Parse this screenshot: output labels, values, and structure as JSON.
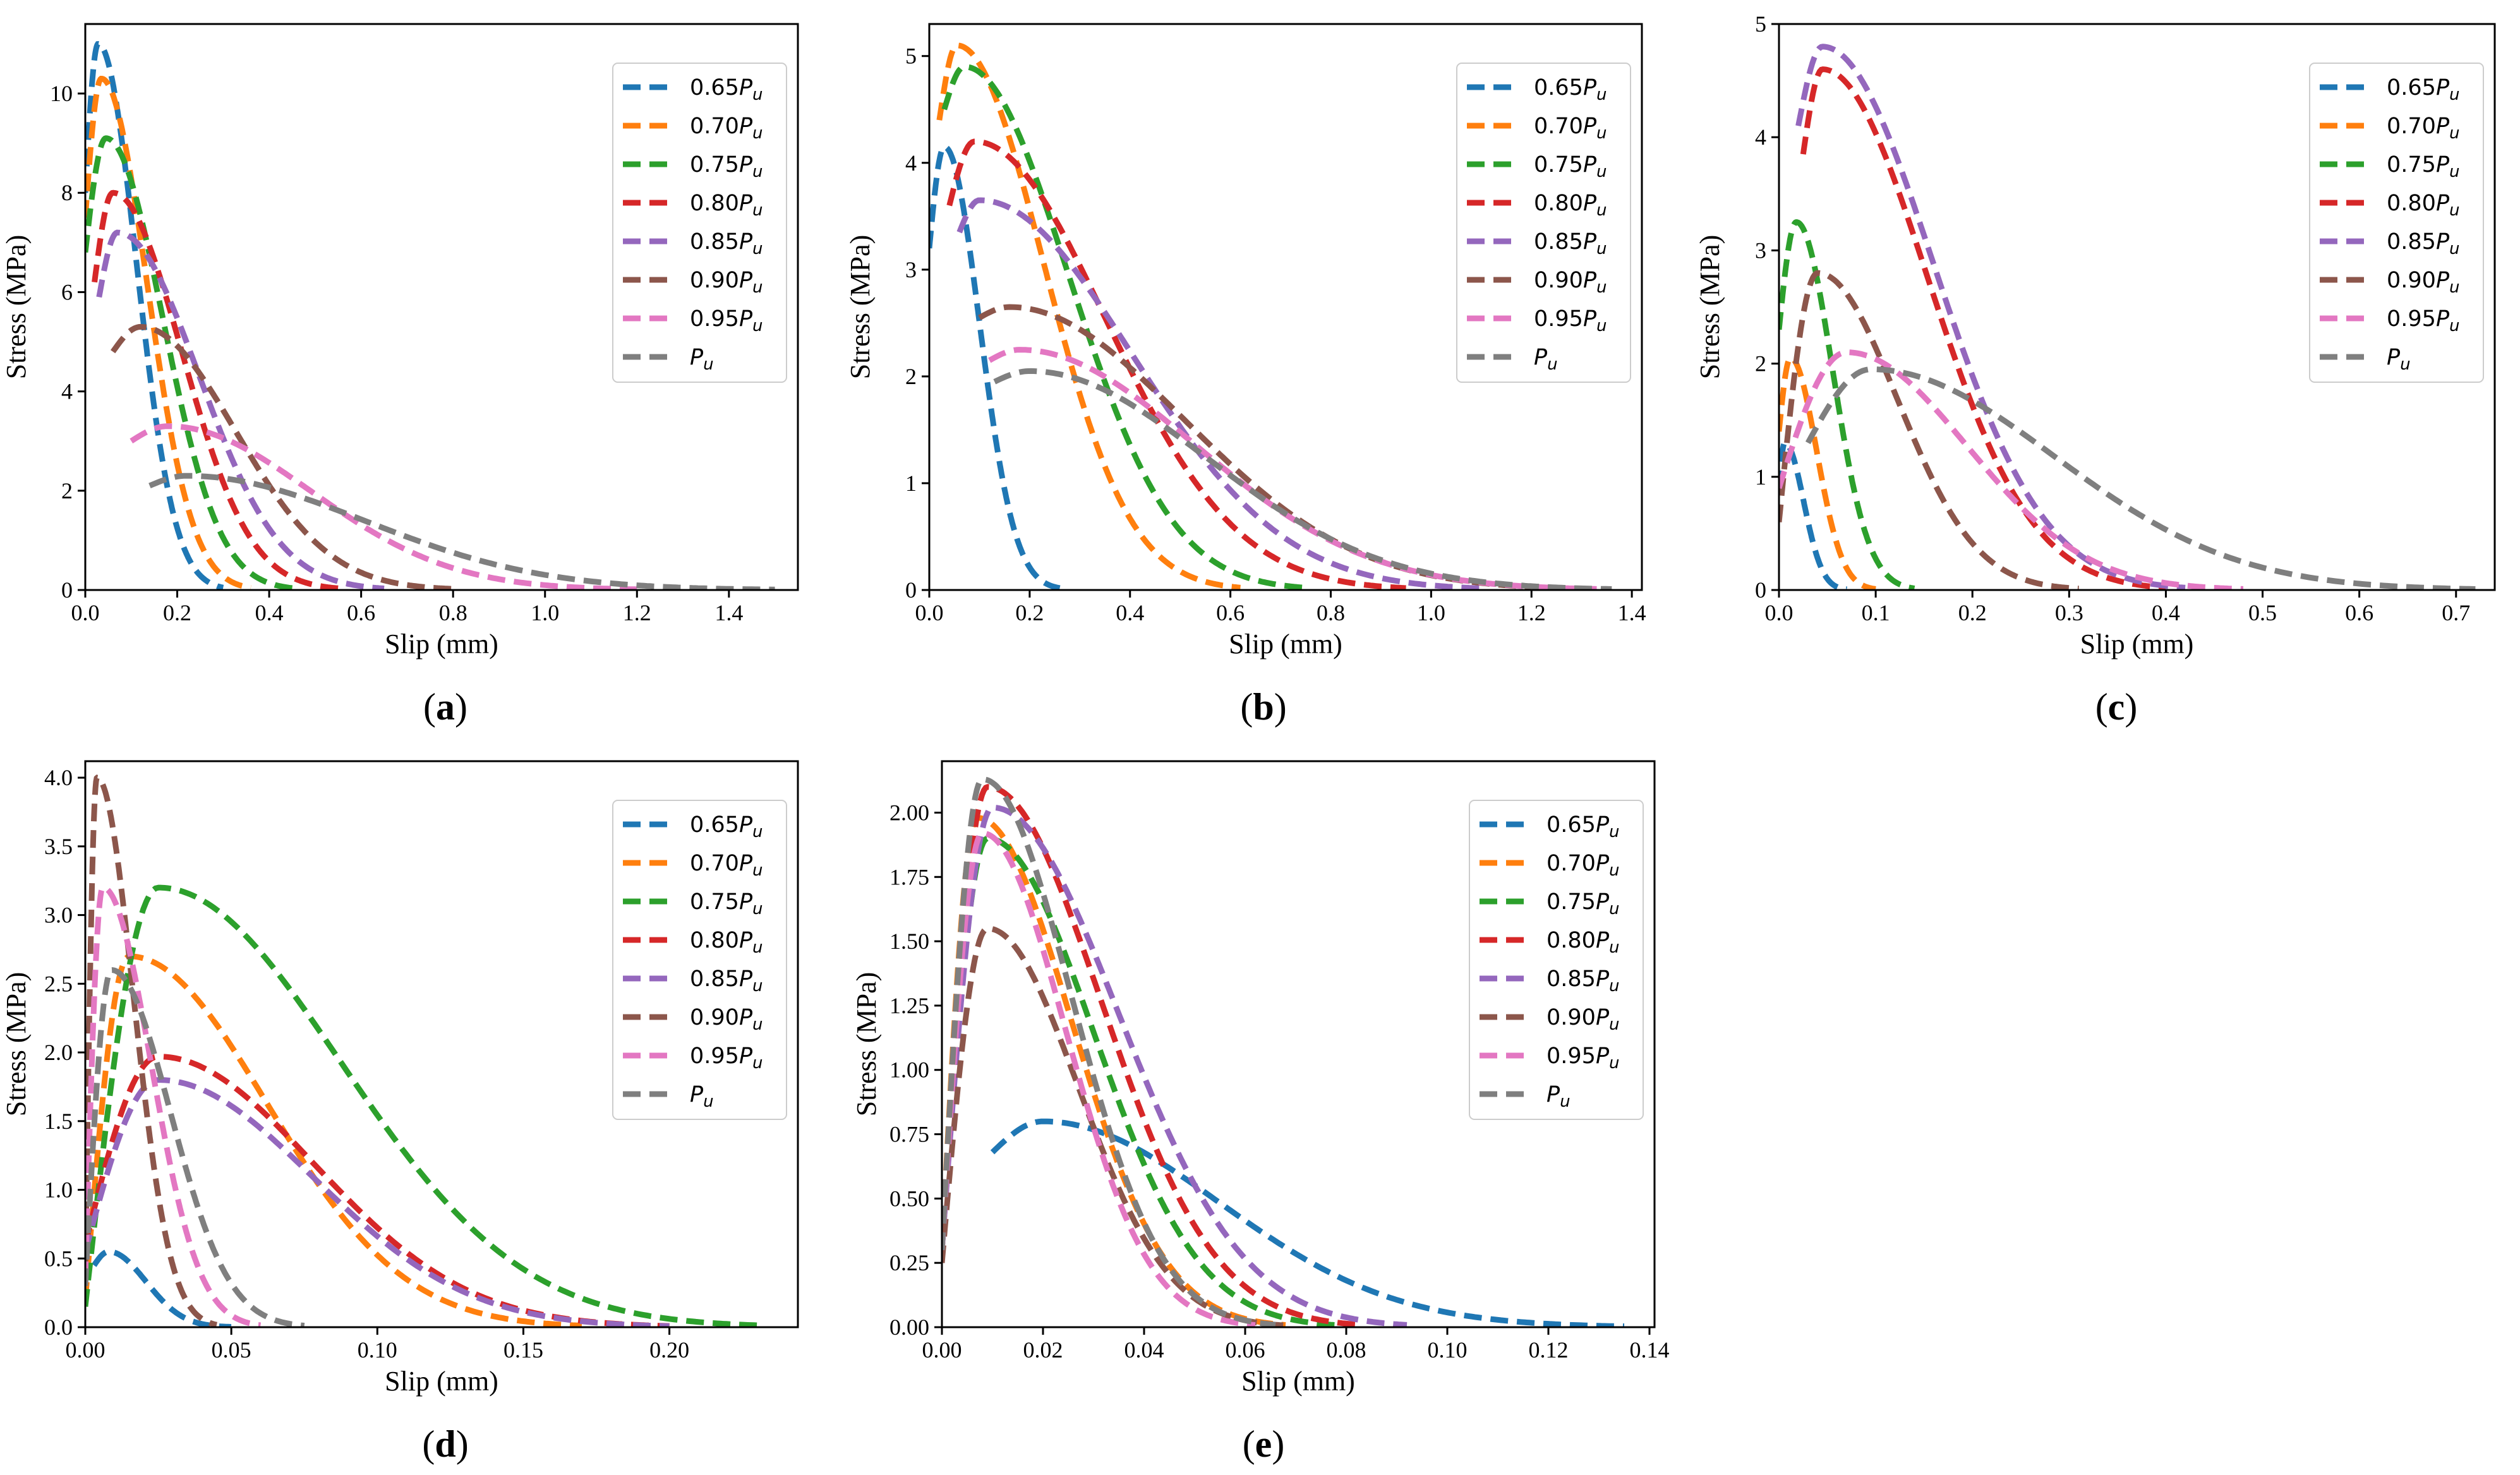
{
  "colors": {
    "0.65Pu": "#1f77b4",
    "0.70Pu": "#ff7f0e",
    "0.75Pu": "#2ca02c",
    "0.80Pu": "#d62728",
    "0.85Pu": "#9467bd",
    "0.90Pu": "#8c564b",
    "0.95Pu": "#e377c2",
    "Pu": "#7f7f7f"
  },
  "legend_entries": [
    {
      "coef": "0.65",
      "sub": "u"
    },
    {
      "coef": "0.70",
      "sub": "u"
    },
    {
      "coef": "0.75",
      "sub": "u"
    },
    {
      "coef": "0.80",
      "sub": "u"
    },
    {
      "coef": "0.85",
      "sub": "u"
    },
    {
      "coef": "0.90",
      "sub": "u"
    },
    {
      "coef": "0.95",
      "sub": "u"
    },
    {
      "coef": "",
      "sub": "u"
    }
  ],
  "legend_symbol": "P",
  "chart_data": [
    {
      "panel": "a",
      "type": "line",
      "label": "(a)",
      "xlabel": "Slip (mm)",
      "ylabel": "Stress (MPa)",
      "xlim": [
        0,
        1.55
      ],
      "ylim": [
        0,
        11.4
      ],
      "xticks": [
        0.0,
        0.2,
        0.4,
        0.6,
        0.8,
        1.0,
        1.2,
        1.4
      ],
      "xtick_labels": [
        "0.0",
        "0.2",
        "0.4",
        "0.6",
        "0.8",
        "1.0",
        "1.2",
        "1.4"
      ],
      "yticks": [
        0,
        2,
        4,
        6,
        8,
        10
      ],
      "ytick_labels": [
        "0",
        "2",
        "4",
        "6",
        "8",
        "10"
      ],
      "legend": "top-right",
      "series": [
        {
          "name": "0.65Pu",
          "x0": 0.0,
          "xp": 0.028,
          "yp": 11.0,
          "xend": 0.3,
          "y0": 8.0
        },
        {
          "name": "0.70Pu",
          "x0": 0.0,
          "xp": 0.035,
          "yp": 10.3,
          "xend": 0.36,
          "y0": 7.5
        },
        {
          "name": "0.75Pu",
          "x0": 0.0,
          "xp": 0.045,
          "yp": 9.1,
          "xend": 0.45,
          "y0": 6.8
        },
        {
          "name": "0.80Pu",
          "x0": 0.02,
          "xp": 0.06,
          "yp": 8.0,
          "xend": 0.55,
          "y0": 6.2
        },
        {
          "name": "0.85Pu",
          "x0": 0.03,
          "xp": 0.07,
          "yp": 7.2,
          "xend": 0.65,
          "y0": 5.9
        },
        {
          "name": "0.90Pu",
          "x0": 0.06,
          "xp": 0.12,
          "yp": 5.3,
          "xend": 0.8,
          "y0": 4.8
        },
        {
          "name": "0.95Pu",
          "x0": 0.1,
          "xp": 0.18,
          "yp": 3.3,
          "xend": 1.2,
          "y0": 3.0
        },
        {
          "name": "Pu",
          "x0": 0.14,
          "xp": 0.22,
          "yp": 2.3,
          "xend": 1.5,
          "y0": 2.1
        }
      ]
    },
    {
      "panel": "b",
      "type": "line",
      "label": "(b)",
      "xlabel": "Slip (mm)",
      "ylabel": "Stress (MPa)",
      "xlim": [
        0,
        1.42
      ],
      "ylim": [
        0,
        5.3
      ],
      "xticks": [
        0.0,
        0.2,
        0.4,
        0.6,
        0.8,
        1.0,
        1.2,
        1.4
      ],
      "xtick_labels": [
        "0.0",
        "0.2",
        "0.4",
        "0.6",
        "0.8",
        "1.0",
        "1.2",
        "1.4"
      ],
      "yticks": [
        0,
        1,
        2,
        3,
        4,
        5
      ],
      "ytick_labels": [
        "0",
        "1",
        "2",
        "3",
        "4",
        "5"
      ],
      "legend": "top-right",
      "series": [
        {
          "name": "0.65Pu",
          "x0": 0.0,
          "xp": 0.03,
          "yp": 4.15,
          "xend": 0.26,
          "y0": 3.2
        },
        {
          "name": "0.70Pu",
          "x0": 0.02,
          "xp": 0.055,
          "yp": 5.1,
          "xend": 0.62,
          "y0": 4.4
        },
        {
          "name": "0.75Pu",
          "x0": 0.03,
          "xp": 0.07,
          "yp": 4.9,
          "xend": 0.75,
          "y0": 4.5
        },
        {
          "name": "0.80Pu",
          "x0": 0.04,
          "xp": 0.09,
          "yp": 4.2,
          "xend": 0.95,
          "y0": 3.6
        },
        {
          "name": "0.85Pu",
          "x0": 0.06,
          "xp": 0.1,
          "yp": 3.65,
          "xend": 1.1,
          "y0": 3.35
        },
        {
          "name": "0.90Pu",
          "x0": 0.1,
          "xp": 0.16,
          "yp": 2.65,
          "xend": 1.3,
          "y0": 2.55
        },
        {
          "name": "0.95Pu",
          "x0": 0.12,
          "xp": 0.18,
          "yp": 2.25,
          "xend": 1.33,
          "y0": 2.15
        },
        {
          "name": "Pu",
          "x0": 0.13,
          "xp": 0.2,
          "yp": 2.05,
          "xend": 1.36,
          "y0": 1.95
        }
      ]
    },
    {
      "panel": "c",
      "type": "line",
      "label": "(c)",
      "xlabel": "Slip (mm)",
      "ylabel": "Stress (MPa)",
      "xlim": [
        0,
        0.74
      ],
      "ylim": [
        0,
        5.0
      ],
      "xticks": [
        0.0,
        0.1,
        0.2,
        0.3,
        0.4,
        0.5,
        0.6,
        0.7
      ],
      "xtick_labels": [
        "0.0",
        "0.1",
        "0.2",
        "0.3",
        "0.4",
        "0.5",
        "0.6",
        "0.7"
      ],
      "yticks": [
        0,
        1,
        2,
        3,
        4,
        5
      ],
      "ytick_labels": [
        "0",
        "1",
        "2",
        "3",
        "4",
        "5"
      ],
      "legend": "top-right",
      "series": [
        {
          "name": "0.65Pu",
          "x0": 0.0,
          "xp": 0.006,
          "yp": 1.3,
          "xend": 0.07,
          "y0": 0.9
        },
        {
          "name": "0.70Pu",
          "x0": 0.0,
          "xp": 0.012,
          "yp": 2.05,
          "xend": 0.1,
          "y0": 1.4
        },
        {
          "name": "0.75Pu",
          "x0": 0.0,
          "xp": 0.018,
          "yp": 3.25,
          "xend": 0.14,
          "y0": 2.3
        },
        {
          "name": "0.80Pu",
          "x0": 0.025,
          "xp": 0.045,
          "yp": 4.6,
          "xend": 0.4,
          "y0": 3.85
        },
        {
          "name": "0.85Pu",
          "x0": 0.02,
          "xp": 0.045,
          "yp": 4.8,
          "xend": 0.42,
          "y0": 4.1
        },
        {
          "name": "0.90Pu",
          "x0": 0.0,
          "xp": 0.04,
          "yp": 2.8,
          "xend": 0.31,
          "y0": 0.6
        },
        {
          "name": "0.95Pu",
          "x0": 0.0,
          "xp": 0.07,
          "yp": 2.1,
          "xend": 0.48,
          "y0": 0.9
        },
        {
          "name": "Pu",
          "x0": 0.03,
          "xp": 0.095,
          "yp": 1.95,
          "xend": 0.72,
          "y0": 1.3
        }
      ]
    },
    {
      "panel": "d",
      "type": "line",
      "label": "(d)",
      "xlabel": "Slip (mm)",
      "ylabel": "Stress (MPa)",
      "xlim": [
        0,
        0.244
      ],
      "ylim": [
        0,
        4.12
      ],
      "xticks": [
        0.0,
        0.05,
        0.1,
        0.15,
        0.2
      ],
      "xtick_labels": [
        "0.00",
        "0.05",
        "0.10",
        "0.15",
        "0.20"
      ],
      "yticks": [
        0.0,
        0.5,
        1.0,
        1.5,
        2.0,
        2.5,
        3.0,
        3.5,
        4.0
      ],
      "ytick_labels": [
        "0.0",
        "0.5",
        "1.0",
        "1.5",
        "2.0",
        "2.5",
        "3.0",
        "3.5",
        "4.0"
      ],
      "legend": "top-right",
      "series": [
        {
          "name": "0.65Pu",
          "x0": 0.003,
          "xp": 0.008,
          "yp": 0.55,
          "xend": 0.05,
          "y0": 0.45
        },
        {
          "name": "0.70Pu",
          "x0": 0.0,
          "xp": 0.015,
          "yp": 2.7,
          "xend": 0.17,
          "y0": 0.2
        },
        {
          "name": "0.75Pu",
          "x0": 0.0,
          "xp": 0.025,
          "yp": 3.2,
          "xend": 0.23,
          "y0": 0.15
        },
        {
          "name": "0.80Pu",
          "x0": 0.0,
          "xp": 0.025,
          "yp": 1.97,
          "xend": 0.2,
          "y0": 0.6
        },
        {
          "name": "0.85Pu",
          "x0": 0.0,
          "xp": 0.025,
          "yp": 1.8,
          "xend": 0.2,
          "y0": 0.55
        },
        {
          "name": "0.90Pu",
          "x0": 0.0,
          "xp": 0.004,
          "yp": 4.0,
          "xend": 0.045,
          "y0": 0.4
        },
        {
          "name": "0.95Pu",
          "x0": 0.0,
          "xp": 0.006,
          "yp": 3.2,
          "xend": 0.06,
          "y0": 0.35
        },
        {
          "name": "Pu",
          "x0": 0.0,
          "xp": 0.009,
          "yp": 2.6,
          "xend": 0.075,
          "y0": 0.3
        }
      ]
    },
    {
      "panel": "e",
      "type": "line",
      "label": "(e)",
      "xlabel": "Slip (mm)",
      "ylabel": "Stress (MPa)",
      "xlim": [
        0,
        0.141
      ],
      "ylim": [
        0,
        2.2
      ],
      "xticks": [
        0.0,
        0.02,
        0.04,
        0.06,
        0.08,
        0.1,
        0.12,
        0.14
      ],
      "xtick_labels": [
        "0.00",
        "0.02",
        "0.04",
        "0.06",
        "0.08",
        "0.10",
        "0.12",
        "0.14"
      ],
      "yticks": [
        0.0,
        0.25,
        0.5,
        0.75,
        1.0,
        1.25,
        1.5,
        1.75,
        2.0
      ],
      "ytick_labels": [
        "0.00",
        "0.25",
        "0.50",
        "0.75",
        "1.00",
        "1.25",
        "1.50",
        "1.75",
        "2.00"
      ],
      "legend": "top-right",
      "series": [
        {
          "name": "0.65Pu",
          "x0": 0.01,
          "xp": 0.02,
          "yp": 0.8,
          "xend": 0.135,
          "y0": 0.68
        },
        {
          "name": "0.70Pu",
          "x0": 0.0,
          "xp": 0.007,
          "yp": 1.98,
          "xend": 0.068,
          "y0": 0.3
        },
        {
          "name": "0.75Pu",
          "x0": 0.0,
          "xp": 0.009,
          "yp": 1.9,
          "xend": 0.078,
          "y0": 0.3
        },
        {
          "name": "0.80Pu",
          "x0": 0.0,
          "xp": 0.009,
          "yp": 2.1,
          "xend": 0.083,
          "y0": 0.3
        },
        {
          "name": "0.85Pu",
          "x0": 0.0,
          "xp": 0.01,
          "yp": 2.02,
          "xend": 0.092,
          "y0": 0.3
        },
        {
          "name": "0.90Pu",
          "x0": 0.0,
          "xp": 0.009,
          "yp": 1.55,
          "xend": 0.068,
          "y0": 0.25
        },
        {
          "name": "0.95Pu",
          "x0": 0.0,
          "xp": 0.008,
          "yp": 1.92,
          "xend": 0.062,
          "y0": 0.3
        },
        {
          "name": "Pu",
          "x0": 0.0,
          "xp": 0.008,
          "yp": 2.13,
          "xend": 0.066,
          "y0": 0.3
        }
      ]
    }
  ]
}
